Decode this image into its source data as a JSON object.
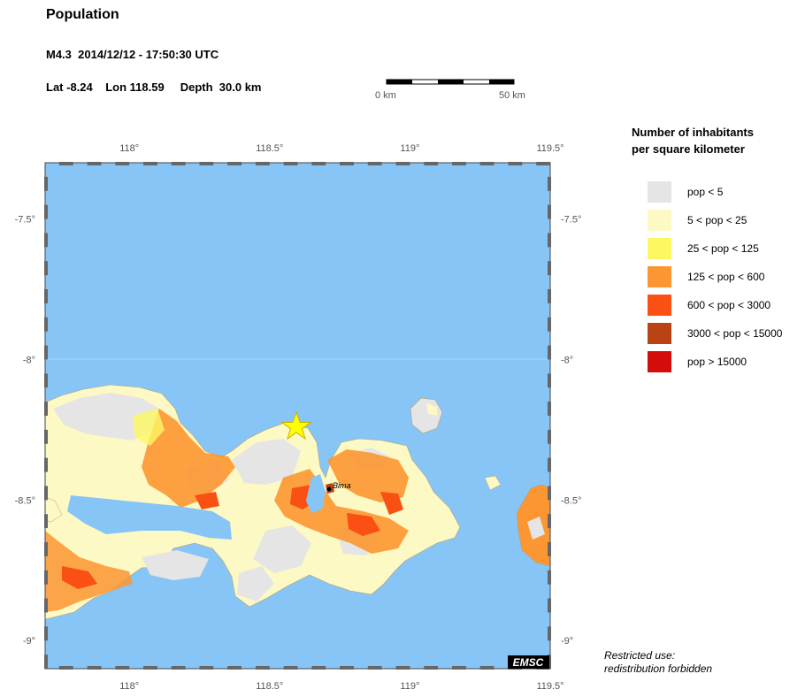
{
  "header": {
    "title": "Population",
    "event": "M4.3  2014/12/12 - 17:50:30 UTC",
    "location": "Lat -8.24    Lon 118.59     Depth  30.0 km"
  },
  "scale": {
    "left_label": "0 km",
    "right_label": "50 km"
  },
  "map": {
    "lon_ticks": [
      "118°",
      "118.5°",
      "119°",
      "119.5°"
    ],
    "lat_ticks": [
      "-7.5°",
      "-8°",
      "-8.5°",
      "-9°"
    ],
    "city_label": "Bima",
    "logo": "EMSC",
    "epicenter": {
      "lat": -8.24,
      "lon": 118.59
    },
    "colors": {
      "sea": "#87c5f7",
      "epicenter": "#ffff00"
    }
  },
  "legend": {
    "title_line1": "Number of inhabitants",
    "title_line2": "per square kilometer",
    "items": [
      {
        "label": "pop < 5",
        "color": "#e5e5e5"
      },
      {
        "label": "5 < pop < 25",
        "color": "#fdf9c4"
      },
      {
        "label": "25 < pop < 125",
        "color": "#fdf861"
      },
      {
        "label": "125 < pop < 600",
        "color": "#fc9632"
      },
      {
        "label": "600 < pop < 3000",
        "color": "#fa5013"
      },
      {
        "label": "3000 < pop < 15000",
        "color": "#b94313"
      },
      {
        "label": "pop > 15000",
        "color": "#d50d0a"
      }
    ]
  },
  "footer": {
    "restricted_line1": "Restricted use:",
    "restricted_line2": "redistribution forbidden"
  }
}
